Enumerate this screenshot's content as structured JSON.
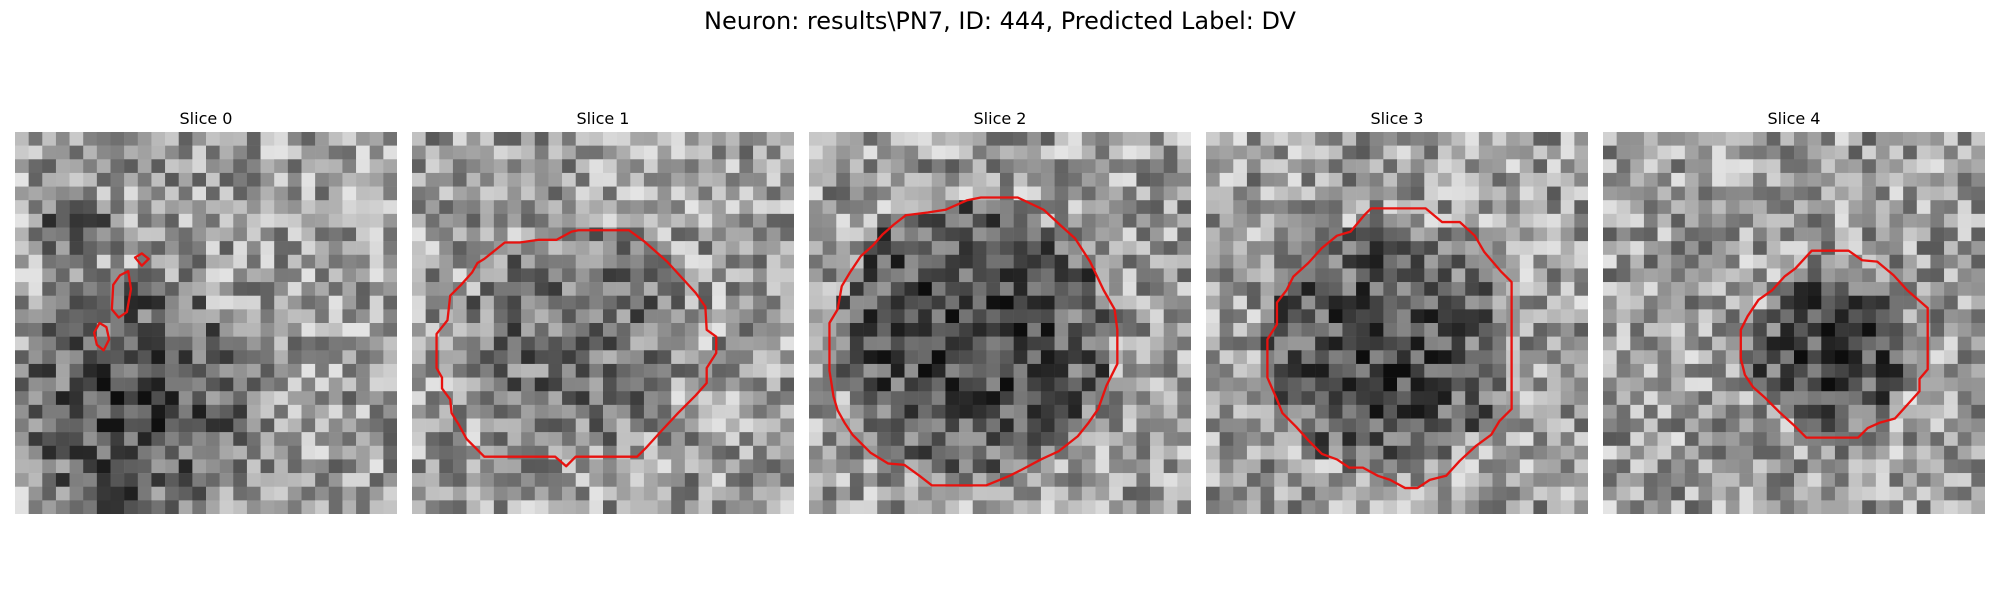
{
  "figure": {
    "title": "Neuron: results\\PN7, ID: 444, Predicted Label: DV",
    "contour_color": "#e8120f"
  },
  "panels": [
    {
      "title": "Slice 0",
      "image": "grayscale-noise-patch",
      "contours": [
        {
          "kind": "small-oval",
          "points": [
            [
              8.8,
              9.2
            ],
            [
              9.3,
              8.9
            ],
            [
              9.8,
              9.3
            ],
            [
              9.3,
              9.8
            ]
          ]
        },
        {
          "kind": "small-oval",
          "points": [
            [
              7.7,
              10.5
            ],
            [
              8.3,
              10.2
            ],
            [
              8.5,
              11.5
            ],
            [
              8.2,
              13.2
            ],
            [
              7.6,
              13.6
            ],
            [
              7.1,
              13.0
            ],
            [
              7.2,
              11.2
            ]
          ]
        },
        {
          "kind": "small-oval",
          "points": [
            [
              6.2,
              14.0
            ],
            [
              6.7,
              14.3
            ],
            [
              6.9,
              15.2
            ],
            [
              6.5,
              16.0
            ],
            [
              6.0,
              15.6
            ],
            [
              5.8,
              14.7
            ]
          ]
        }
      ]
    },
    {
      "title": "Slice 1",
      "image": "grayscale-noise-patch",
      "contours": [
        {
          "kind": "cell-boundary",
          "points": [
            [
              12.2,
              7.2
            ],
            [
              15.9,
              7.2
            ],
            [
              17.0,
              8.0
            ],
            [
              18.7,
              9.5
            ],
            [
              20.8,
              11.8
            ],
            [
              21.5,
              12.8
            ],
            [
              21.6,
              14.5
            ],
            [
              22.3,
              15.0
            ],
            [
              22.3,
              16.2
            ],
            [
              21.6,
              17.3
            ],
            [
              21.6,
              18.4
            ],
            [
              20.8,
              19.3
            ],
            [
              19.5,
              20.6
            ],
            [
              18.2,
              22.0
            ],
            [
              17.2,
              23.1
            ],
            [
              16.5,
              23.8
            ],
            [
              12.0,
              23.8
            ],
            [
              11.3,
              24.5
            ],
            [
              10.5,
              23.8
            ],
            [
              5.3,
              23.8
            ],
            [
              4.0,
              22.5
            ],
            [
              3.4,
              21.4
            ],
            [
              2.9,
              20.6
            ],
            [
              2.8,
              19.6
            ],
            [
              2.2,
              18.8
            ],
            [
              2.2,
              18.0
            ],
            [
              1.8,
              17.3
            ],
            [
              1.8,
              14.8
            ],
            [
              2.6,
              13.8
            ],
            [
              2.8,
              12.0
            ],
            [
              3.6,
              11.2
            ],
            [
              4.4,
              10.3
            ],
            [
              4.8,
              9.6
            ],
            [
              5.3,
              9.3
            ],
            [
              6.8,
              8.1
            ],
            [
              7.9,
              8.1
            ],
            [
              9.3,
              7.9
            ],
            [
              10.6,
              7.9
            ],
            [
              11.7,
              7.3
            ]
          ]
        }
      ]
    },
    {
      "title": "Slice 2",
      "image": "grayscale-noise-patch",
      "contours": [
        {
          "kind": "cell-boundary",
          "points": [
            [
              12.6,
              4.8
            ],
            [
              15.3,
              4.8
            ],
            [
              17.2,
              5.7
            ],
            [
              18.5,
              6.9
            ],
            [
              19.5,
              7.8
            ],
            [
              20.6,
              9.5
            ],
            [
              21.6,
              11.6
            ],
            [
              22.4,
              13.0
            ],
            [
              22.6,
              14.5
            ],
            [
              22.6,
              17.0
            ],
            [
              21.8,
              18.6
            ],
            [
              21.2,
              20.3
            ],
            [
              20.5,
              21.3
            ],
            [
              19.7,
              22.3
            ],
            [
              18.3,
              23.4
            ],
            [
              17.0,
              24.0
            ],
            [
              15.5,
              24.8
            ],
            [
              14.7,
              25.2
            ],
            [
              13.0,
              25.9
            ],
            [
              9.0,
              25.9
            ],
            [
              8.1,
              25.2
            ],
            [
              7.0,
              24.4
            ],
            [
              5.8,
              24.3
            ],
            [
              4.5,
              23.5
            ],
            [
              3.2,
              22.2
            ],
            [
              2.6,
              21.3
            ],
            [
              2.1,
              20.4
            ],
            [
              1.8,
              19.4
            ],
            [
              1.5,
              17.5
            ],
            [
              1.5,
              14.0
            ],
            [
              2.1,
              13.0
            ],
            [
              2.4,
              11.3
            ],
            [
              3.0,
              10.3
            ],
            [
              3.8,
              9.1
            ],
            [
              4.7,
              8.3
            ],
            [
              5.4,
              7.5
            ],
            [
              6.2,
              6.8
            ],
            [
              7.1,
              6.1
            ],
            [
              8.7,
              5.9
            ],
            [
              10.0,
              5.7
            ],
            [
              11.6,
              5.0
            ]
          ]
        }
      ]
    },
    {
      "title": "Slice 3",
      "image": "grayscale-noise-patch",
      "contours": [
        {
          "kind": "cell-boundary",
          "points": [
            [
              12.1,
              5.6
            ],
            [
              16.1,
              5.6
            ],
            [
              17.3,
              6.6
            ],
            [
              18.6,
              6.6
            ],
            [
              19.7,
              7.6
            ],
            [
              20.4,
              8.8
            ],
            [
              21.6,
              10.2
            ],
            [
              22.4,
              11.0
            ],
            [
              22.4,
              20.3
            ],
            [
              21.5,
              21.2
            ],
            [
              20.9,
              22.2
            ],
            [
              19.8,
              23.0
            ],
            [
              18.6,
              24.1
            ],
            [
              17.6,
              25.2
            ],
            [
              16.4,
              25.5
            ],
            [
              15.5,
              26.1
            ],
            [
              14.6,
              26.1
            ],
            [
              13.5,
              25.5
            ],
            [
              12.6,
              25.2
            ],
            [
              11.5,
              24.6
            ],
            [
              10.5,
              24.6
            ],
            [
              9.6,
              24.0
            ],
            [
              8.5,
              23.6
            ],
            [
              7.5,
              22.6
            ],
            [
              6.6,
              21.6
            ],
            [
              5.6,
              20.6
            ],
            [
              5.2,
              19.6
            ],
            [
              4.5,
              18.0
            ],
            [
              4.5,
              15.2
            ],
            [
              5.2,
              14.1
            ],
            [
              5.2,
              12.5
            ],
            [
              5.9,
              11.6
            ],
            [
              6.4,
              10.6
            ],
            [
              7.5,
              9.6
            ],
            [
              8.5,
              8.5
            ],
            [
              9.6,
              7.6
            ],
            [
              10.6,
              7.3
            ],
            [
              11.6,
              6.1
            ]
          ]
        }
      ]
    },
    {
      "title": "Slice 4",
      "image": "grayscale-noise-patch",
      "contours": [
        {
          "kind": "cell-boundary",
          "points": [
            [
              15.3,
              8.7
            ],
            [
              18.0,
              8.7
            ],
            [
              19.0,
              9.4
            ],
            [
              20.1,
              9.5
            ],
            [
              21.3,
              10.5
            ],
            [
              22.3,
              11.6
            ],
            [
              23.8,
              12.9
            ],
            [
              23.8,
              17.4
            ],
            [
              23.2,
              18.1
            ],
            [
              23.2,
              19.0
            ],
            [
              22.3,
              20.0
            ],
            [
              21.4,
              21.0
            ],
            [
              20.3,
              21.3
            ],
            [
              19.4,
              21.7
            ],
            [
              18.7,
              22.4
            ],
            [
              14.9,
              22.4
            ],
            [
              14.0,
              21.5
            ],
            [
              13.0,
              20.6
            ],
            [
              11.9,
              19.5
            ],
            [
              11.0,
              18.7
            ],
            [
              10.4,
              17.8
            ],
            [
              10.1,
              16.6
            ],
            [
              10.1,
              14.5
            ],
            [
              10.6,
              13.5
            ],
            [
              11.4,
              12.3
            ],
            [
              12.4,
              11.6
            ],
            [
              13.3,
              10.6
            ],
            [
              14.1,
              10.0
            ]
          ]
        }
      ]
    }
  ]
}
